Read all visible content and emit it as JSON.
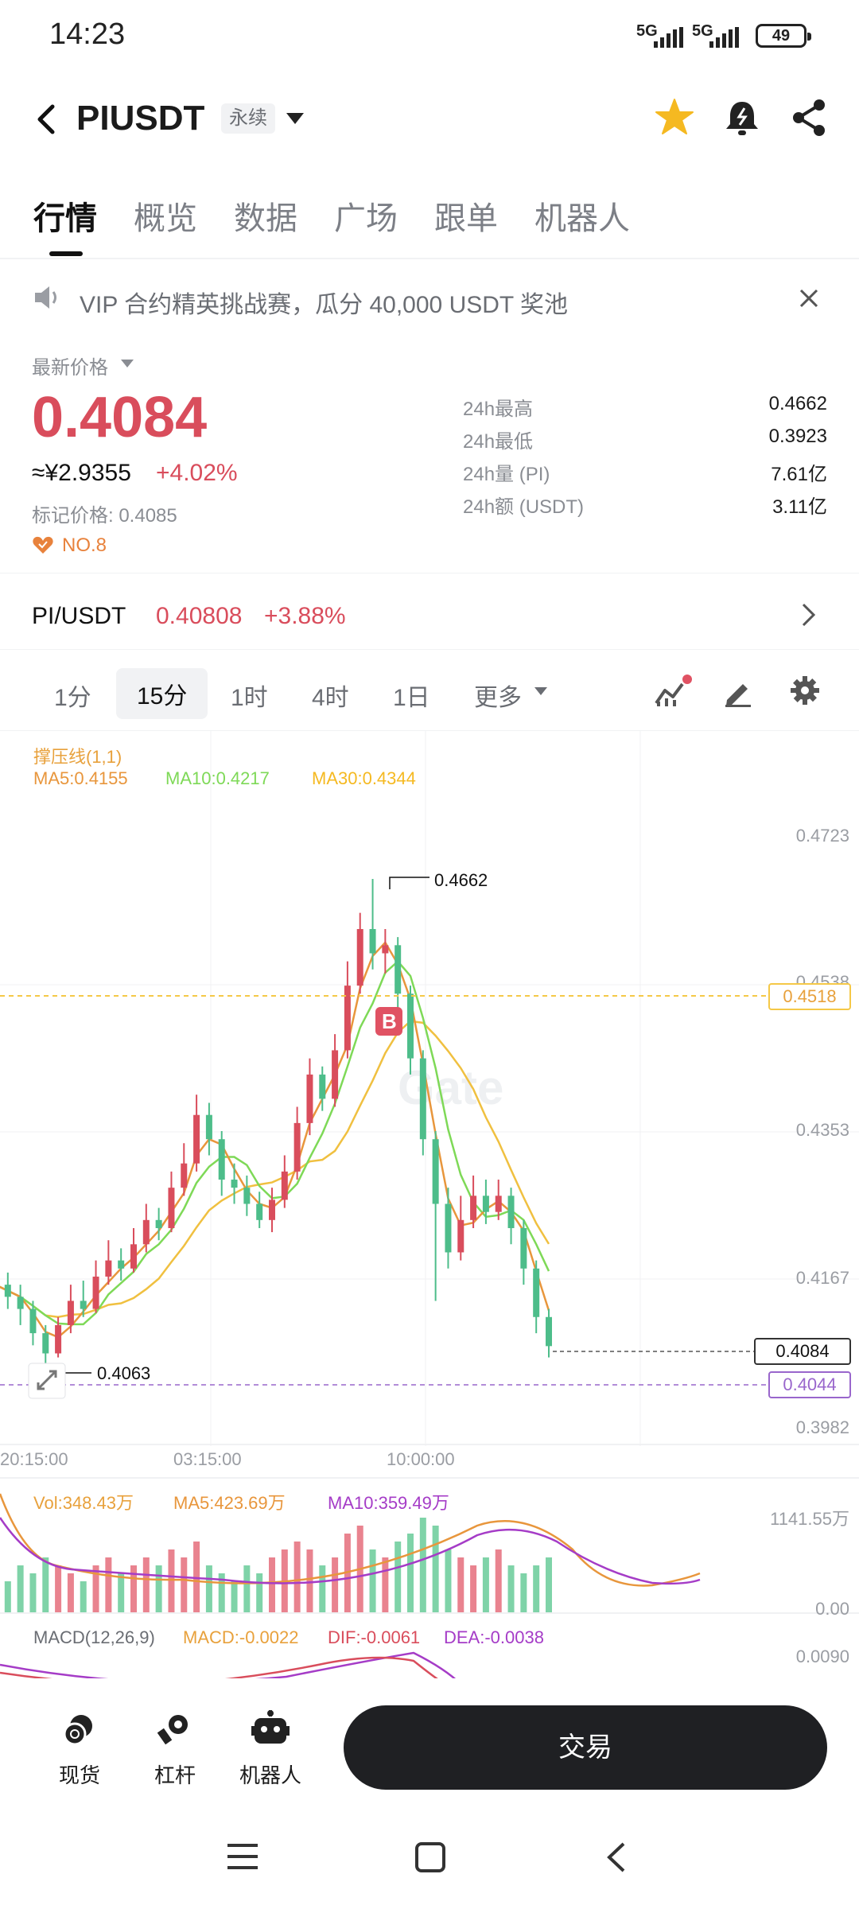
{
  "status_bar": {
    "time": "14:23",
    "signal1": "5G",
    "signal2": "5G",
    "battery": "49"
  },
  "header": {
    "pair": "PIUSDT",
    "contract_type": "永续"
  },
  "tabs": [
    {
      "label": "行情"
    },
    {
      "label": "概览"
    },
    {
      "label": "数据"
    },
    {
      "label": "广场"
    },
    {
      "label": "跟单"
    },
    {
      "label": "机器人"
    }
  ],
  "notice": {
    "text": "VIP 合约精英挑战赛，瓜分 40,000 USDT 奖池"
  },
  "price": {
    "label": "最新价格",
    "last": "0.4084",
    "cny": "≈¥2.9355",
    "change": "+4.02%",
    "mark": "标记价格: 0.4085",
    "rank": "NO.8"
  },
  "stats": [
    {
      "label": "24h最高",
      "value": "0.4662"
    },
    {
      "label": "24h最低",
      "value": "0.3923"
    },
    {
      "label": "24h量 (PI)",
      "value": "7.61亿"
    },
    {
      "label": "24h额 (USDT)",
      "value": "3.11亿"
    }
  ],
  "spot": {
    "pair": "PI/USDT",
    "price": "0.40808",
    "change": "+3.88%"
  },
  "intervals": [
    {
      "label": "1分"
    },
    {
      "label": "15分"
    },
    {
      "label": "1时"
    },
    {
      "label": "4时"
    },
    {
      "label": "1日"
    },
    {
      "label": "更多"
    }
  ],
  "chart": {
    "indicator_title": "撑压线(1,1)",
    "ma5": "MA5:0.4155",
    "ma10": "MA10:0.4217",
    "ma30": "MA30:0.4344",
    "high_label": "0.4662",
    "low_label": "0.4063",
    "y_ticks": [
      "0.4723",
      "0.4538",
      "0.4353",
      "0.4167",
      "0.3982"
    ],
    "x_ticks": [
      "20:15:00",
      "03:15:00",
      "10:00:00"
    ],
    "support_line": "0.4518",
    "last_price_tag": "0.4084",
    "purple_line": "0.4044",
    "marker": "B",
    "watermark": "Gate",
    "vol_label": "Vol:348.43万",
    "vol_ma5": "MA5:423.69万",
    "vol_ma10": "MA10:359.49万",
    "vol_max": "1141.55万",
    "vol_min": "0.00",
    "macd_title": "MACD(12,26,9)",
    "macd": "MACD:-0.0022",
    "dif": "DIF:-0.0061",
    "dea": "DEA:-0.0038",
    "macd_top": "0.0090"
  },
  "chart_data": {
    "type": "candlestick",
    "y_range": [
      0.3982,
      0.4723
    ],
    "candles": [
      [
        0.417,
        0.416,
        0.419,
        0.414,
        "down"
      ],
      [
        0.416,
        0.4145,
        0.4175,
        0.413,
        "down"
      ],
      [
        0.4145,
        0.413,
        0.416,
        0.411,
        "down"
      ],
      [
        0.413,
        0.41,
        0.414,
        0.4085,
        "down"
      ],
      [
        0.41,
        0.4075,
        0.411,
        0.4063,
        "down"
      ],
      [
        0.4075,
        0.411,
        0.412,
        0.407,
        "up"
      ],
      [
        0.411,
        0.414,
        0.416,
        0.41,
        "up"
      ],
      [
        0.414,
        0.413,
        0.4165,
        0.412,
        "down"
      ],
      [
        0.413,
        0.417,
        0.419,
        0.4125,
        "up"
      ],
      [
        0.417,
        0.419,
        0.4215,
        0.416,
        "up"
      ],
      [
        0.419,
        0.418,
        0.4205,
        0.4165,
        "down"
      ],
      [
        0.418,
        0.421,
        0.423,
        0.4175,
        "up"
      ],
      [
        0.421,
        0.424,
        0.426,
        0.42,
        "up"
      ],
      [
        0.424,
        0.423,
        0.4255,
        0.4215,
        "down"
      ],
      [
        0.423,
        0.428,
        0.43,
        0.4225,
        "up"
      ],
      [
        0.428,
        0.431,
        0.4335,
        0.427,
        "up"
      ],
      [
        0.431,
        0.437,
        0.4395,
        0.43,
        "up"
      ],
      [
        0.437,
        0.434,
        0.4385,
        0.432,
        "down"
      ],
      [
        0.434,
        0.429,
        0.435,
        0.427,
        "down"
      ],
      [
        0.429,
        0.428,
        0.431,
        0.426,
        "down"
      ],
      [
        0.428,
        0.426,
        0.4295,
        0.4245,
        "down"
      ],
      [
        0.426,
        0.424,
        0.4275,
        0.423,
        "down"
      ],
      [
        0.424,
        0.4265,
        0.428,
        0.4225,
        "up"
      ],
      [
        0.4265,
        0.43,
        0.432,
        0.4255,
        "up"
      ],
      [
        0.43,
        0.436,
        0.438,
        0.429,
        "up"
      ],
      [
        0.436,
        0.442,
        0.444,
        0.4345,
        "up"
      ],
      [
        0.442,
        0.439,
        0.443,
        0.4375,
        "down"
      ],
      [
        0.439,
        0.445,
        0.447,
        0.438,
        "up"
      ],
      [
        0.445,
        0.453,
        0.456,
        0.444,
        "up"
      ],
      [
        0.453,
        0.46,
        0.462,
        0.452,
        "up"
      ],
      [
        0.46,
        0.457,
        0.4662,
        0.455,
        "down"
      ],
      [
        0.457,
        0.458,
        0.46,
        0.4545,
        "up"
      ],
      [
        0.458,
        0.452,
        0.459,
        0.45,
        "down"
      ],
      [
        0.452,
        0.444,
        0.453,
        0.442,
        "down"
      ],
      [
        0.444,
        0.434,
        0.445,
        0.432,
        "down"
      ],
      [
        0.434,
        0.426,
        0.435,
        0.414,
        "down"
      ],
      [
        0.426,
        0.42,
        0.428,
        0.418,
        "down"
      ],
      [
        0.42,
        0.424,
        0.427,
        0.419,
        "up"
      ],
      [
        0.424,
        0.427,
        0.4295,
        0.423,
        "up"
      ],
      [
        0.427,
        0.425,
        0.429,
        0.4235,
        "down"
      ],
      [
        0.425,
        0.427,
        0.429,
        0.424,
        "up"
      ],
      [
        0.427,
        0.423,
        0.428,
        0.421,
        "down"
      ],
      [
        0.423,
        0.418,
        0.424,
        0.416,
        "down"
      ],
      [
        0.418,
        0.412,
        0.419,
        0.41,
        "down"
      ],
      [
        0.412,
        0.4084,
        0.413,
        0.407,
        "down"
      ]
    ],
    "volume": [
      5,
      4,
      6,
      5,
      7,
      6,
      5,
      4,
      6,
      7,
      5,
      6,
      7,
      6,
      8,
      7,
      9,
      6,
      5,
      4,
      6,
      5,
      7,
      8,
      9,
      8,
      6,
      7,
      10,
      11,
      8,
      7,
      9,
      10,
      12,
      11,
      8,
      7,
      6,
      7,
      8,
      6,
      5,
      6,
      7
    ],
    "vol_range": [
      0,
      1141.55
    ]
  },
  "bottom_nav": {
    "spot": "现货",
    "margin": "杠杆",
    "bot": "机器人",
    "trade": "交易"
  }
}
